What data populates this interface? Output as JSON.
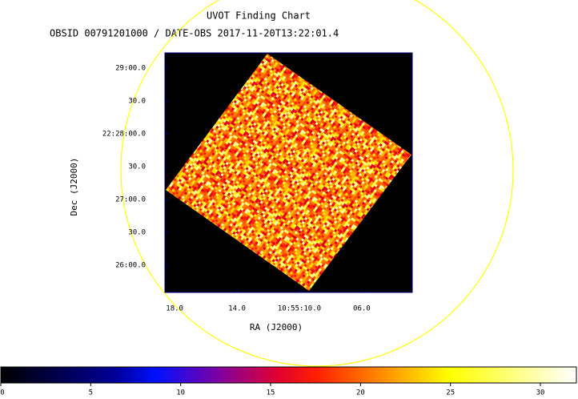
{
  "chart_data": {
    "type": "image",
    "title": "UVOT Finding Chart",
    "subtitle": "OBSID 00791201000 / DATE-OBS 2017-11-20T13:22:01.4",
    "xlabel": "RA (J2000)",
    "ylabel": "Dec (J2000)",
    "xlim": [
      163.8276,
      163.7615
    ],
    "xticks": [
      {
        "value": 163.825,
        "label": "18.0"
      },
      {
        "value": 163.80833,
        "label": "14.0"
      },
      {
        "value": 163.79167,
        "label": "10:55:10.0"
      },
      {
        "value": 163.775,
        "label": "06.0"
      }
    ],
    "ylim": [
      22.42642,
      22.4872
    ],
    "yticks": [
      {
        "value": 22.48333,
        "label": "29:00.0"
      },
      {
        "value": 22.475,
        "label": "30.0"
      },
      {
        "value": 22.46667,
        "label": "22:28:00.0"
      },
      {
        "value": 22.45833,
        "label": "30.0"
      },
      {
        "value": 22.45,
        "label": "27:00.0"
      },
      {
        "value": 22.44167,
        "label": "30.0"
      },
      {
        "value": 22.43333,
        "label": "26:00.0"
      }
    ],
    "colorbar": {
      "lim": [
        0,
        32
      ],
      "ticks": [
        0,
        5,
        10,
        15,
        20,
        25,
        30
      ]
    }
  }
}
